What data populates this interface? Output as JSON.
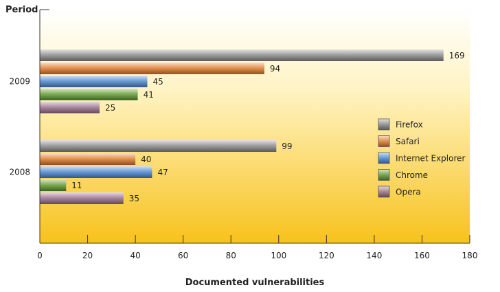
{
  "chart_data": {
    "type": "bar",
    "orientation": "horizontal",
    "title": "",
    "ylabel": "Period",
    "xlabel": "Documented vulnerabilities",
    "xlim": [
      0,
      180
    ],
    "xticks": [
      "0",
      "20",
      "40",
      "60",
      "80",
      "100",
      "120",
      "140",
      "160",
      "180"
    ],
    "categories": [
      "2009",
      "2008"
    ],
    "series": [
      {
        "name": "Firefox",
        "color": "#8a8a8a",
        "values": [
          169,
          99
        ]
      },
      {
        "name": "Safari",
        "color": "#e07a2a",
        "values": [
          94,
          40
        ]
      },
      {
        "name": "Internet Explorer",
        "color": "#4a86cf",
        "values": [
          45,
          47
        ]
      },
      {
        "name": "Chrome",
        "color": "#5e9a2e",
        "values": [
          41,
          11
        ]
      },
      {
        "name": "Opera",
        "color": "#9a6e8a",
        "values": [
          25,
          35
        ]
      }
    ],
    "legend_position": "right"
  }
}
